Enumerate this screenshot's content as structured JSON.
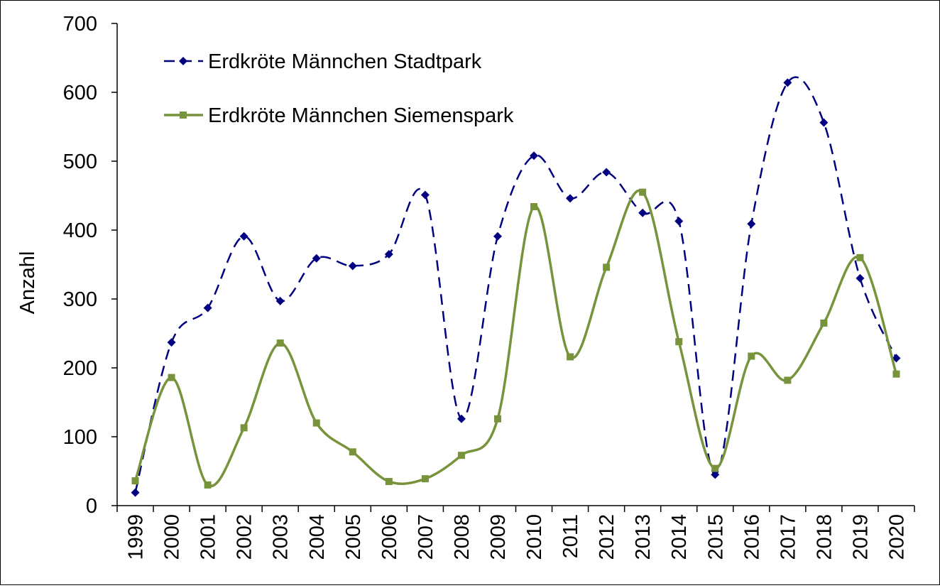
{
  "chart_data": {
    "type": "line",
    "title": "",
    "xlabel": "",
    "ylabel": "Anzahl",
    "ylim": [
      0,
      700
    ],
    "yticks": [
      0,
      100,
      200,
      300,
      400,
      500,
      600,
      700
    ],
    "grid": false,
    "legend_position": "top-left",
    "categories": [
      "1999",
      "2000",
      "2001",
      "2002",
      "2003",
      "2004",
      "2005",
      "2006",
      "2007",
      "2008",
      "2009",
      "2010",
      "2011",
      "2012",
      "2013",
      "2014",
      "2015",
      "2016",
      "2017",
      "2018",
      "2019",
      "2020"
    ],
    "series": [
      {
        "name": "Erdkröte Männchen Stadtpark",
        "color": "#000080",
        "line_style": "dashed",
        "marker": "diamond",
        "values": [
          19,
          237,
          287,
          391,
          297,
          359,
          348,
          365,
          451,
          126,
          391,
          508,
          446,
          484,
          425,
          413,
          45,
          409,
          614,
          556,
          330,
          214
        ]
      },
      {
        "name": "Erdkröte Männchen Siemenspark",
        "color": "#77933C",
        "line_style": "solid",
        "marker": "square",
        "values": [
          36,
          186,
          30,
          113,
          236,
          120,
          78,
          35,
          39,
          73,
          126,
          434,
          216,
          346,
          455,
          238,
          54,
          217,
          182,
          265,
          360,
          191
        ]
      }
    ]
  }
}
